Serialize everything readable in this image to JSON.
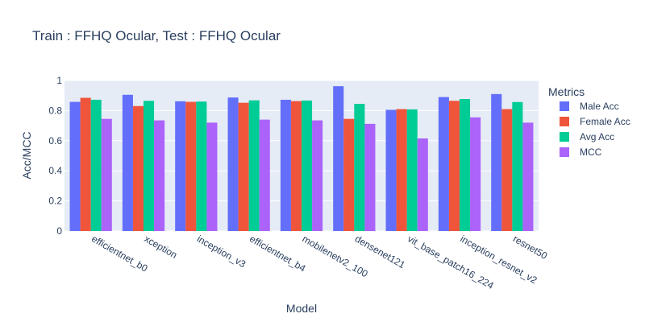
{
  "chart_data": {
    "type": "bar",
    "title": "Train : FFHQ Ocular, Test : FFHQ Ocular",
    "xlabel": "Model",
    "ylabel": "Acc/MCC",
    "ylim": [
      0,
      1
    ],
    "yticks": [
      "0",
      "0.2",
      "0.4",
      "0.6",
      "0.8",
      "1"
    ],
    "legend_title": "Metrics",
    "legend_position": "right",
    "grid": true,
    "categories": [
      "efficientnet_b0",
      "xception",
      "inception_v3",
      "efficientnet_b4",
      "mobilenetv2_100",
      "densenet121",
      "vit_base_patch16_224",
      "inception_resnet_v2",
      "resnet50"
    ],
    "series": [
      {
        "name": "Male Acc",
        "color": "#636efa",
        "values": [
          0.858,
          0.905,
          0.862,
          0.887,
          0.872,
          0.962,
          0.805,
          0.89,
          0.91
        ]
      },
      {
        "name": "Female Acc",
        "color": "#ef553b",
        "values": [
          0.885,
          0.83,
          0.858,
          0.852,
          0.863,
          0.745,
          0.81,
          0.865,
          0.81
        ]
      },
      {
        "name": "Avg Acc",
        "color": "#00cc96",
        "values": [
          0.872,
          0.865,
          0.86,
          0.868,
          0.867,
          0.845,
          0.808,
          0.877,
          0.857
        ]
      },
      {
        "name": "MCC",
        "color": "#ab63fa",
        "values": [
          0.745,
          0.735,
          0.72,
          0.74,
          0.735,
          0.712,
          0.615,
          0.755,
          0.72
        ]
      }
    ]
  }
}
